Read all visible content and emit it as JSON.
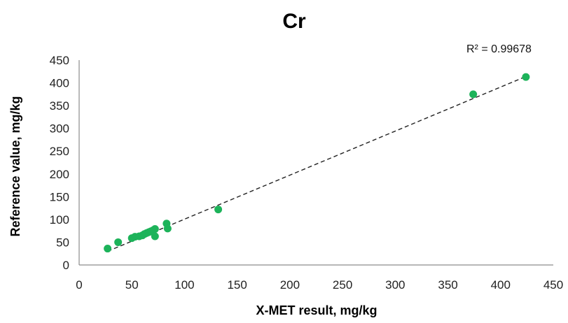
{
  "chart_data": {
    "type": "scatter",
    "title": "Cr",
    "xlabel": "X-MET result, mg/kg",
    "ylabel": "Reference value, mg/kg",
    "xlim": [
      0,
      450
    ],
    "ylim": [
      0,
      450
    ],
    "xticks": [
      0,
      50,
      100,
      150,
      200,
      250,
      300,
      350,
      400,
      450
    ],
    "yticks": [
      0,
      50,
      100,
      150,
      200,
      250,
      300,
      350,
      400,
      450
    ],
    "annotation": "R² = 0.99678",
    "trendline": {
      "style": "dashed",
      "x": [
        27,
        425
      ],
      "y": [
        30,
        415
      ]
    },
    "grid": false,
    "legend": "none",
    "marker_color": "#1db35a",
    "points": [
      {
        "x": 27,
        "y": 36
      },
      {
        "x": 37,
        "y": 50
      },
      {
        "x": 50,
        "y": 59
      },
      {
        "x": 53,
        "y": 62
      },
      {
        "x": 57,
        "y": 63
      },
      {
        "x": 60,
        "y": 65
      },
      {
        "x": 62,
        "y": 68
      },
      {
        "x": 64,
        "y": 70
      },
      {
        "x": 66,
        "y": 72
      },
      {
        "x": 68,
        "y": 74
      },
      {
        "x": 70,
        "y": 76
      },
      {
        "x": 72,
        "y": 79
      },
      {
        "x": 72,
        "y": 63
      },
      {
        "x": 83,
        "y": 91
      },
      {
        "x": 84,
        "y": 80
      },
      {
        "x": 132,
        "y": 122
      },
      {
        "x": 374,
        "y": 375
      },
      {
        "x": 424,
        "y": 413
      }
    ]
  }
}
